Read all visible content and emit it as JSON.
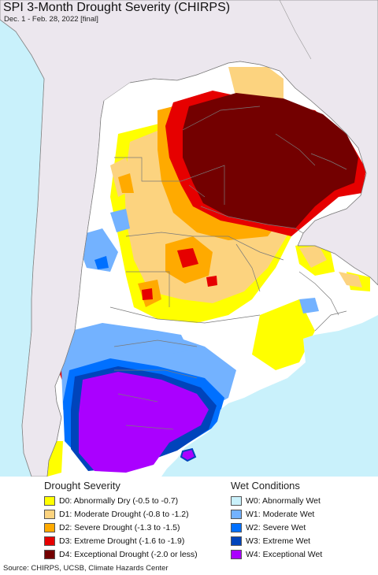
{
  "title": "SPI 3-Month Drought Severity (CHIRPS)",
  "subtitle": "Dec. 1 - Feb. 28, 2022 [final]",
  "map": {
    "ocean_color": "#c9f1fb",
    "land_outside_color": "#ece7ee",
    "no_drought_color": "#ffffff",
    "border_color": "#777777"
  },
  "legend": {
    "drought": {
      "heading": "Drought Severity",
      "items": [
        {
          "label": "D0: Abnormally Dry (-0.5 to -0.7)",
          "color": "#ffff00"
        },
        {
          "label": "D1: Moderate Drought (-0.8 to -1.2)",
          "color": "#fcd37f"
        },
        {
          "label": "D2: Severe Drought (-1.3 to -1.5)",
          "color": "#ffaa00"
        },
        {
          "label": "D3: Extreme Drought (-1.6 to -1.9)",
          "color": "#e60000"
        },
        {
          "label": "D4: Exceptional Drought (-2.0 or less)",
          "color": "#730000"
        }
      ]
    },
    "wet": {
      "heading": "Wet Conditions",
      "items": [
        {
          "label": "W0: Abnormally Wet",
          "color": "#c9f1fb"
        },
        {
          "label": "W1: Moderate Wet",
          "color": "#73b2ff"
        },
        {
          "label": "W2: Severe Wet",
          "color": "#0070ff"
        },
        {
          "label": "W3: Extreme Wet",
          "color": "#0044bb"
        },
        {
          "label": "W4: Exceptional Wet",
          "color": "#aa00ff"
        }
      ]
    }
  },
  "source": "Source: CHIRPS, UCSB, Climate Hazards Center"
}
